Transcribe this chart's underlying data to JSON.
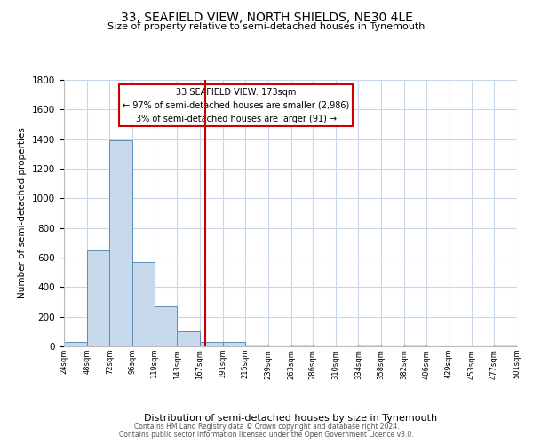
{
  "title": "33, SEAFIELD VIEW, NORTH SHIELDS, NE30 4LE",
  "subtitle": "Size of property relative to semi-detached houses in Tynemouth",
  "xlabel": "Distribution of semi-detached houses by size in Tynemouth",
  "ylabel": "Number of semi-detached properties",
  "footnote1": "Contains HM Land Registry data © Crown copyright and database right 2024.",
  "footnote2": "Contains public sector information licensed under the Open Government Licence v3.0.",
  "bar_edges": [
    24,
    48,
    72,
    96,
    119,
    143,
    167,
    191,
    215,
    239,
    263,
    286,
    310,
    334,
    358,
    382,
    406,
    429,
    453,
    477,
    501
  ],
  "bar_heights": [
    30,
    650,
    1390,
    570,
    270,
    105,
    30,
    30,
    15,
    0,
    15,
    0,
    0,
    15,
    0,
    15,
    0,
    0,
    0,
    15,
    0
  ],
  "property_size": 173,
  "annotation_title": "33 SEAFIELD VIEW: 173sqm",
  "annotation_line1": "← 97% of semi-detached houses are smaller (2,986)",
  "annotation_line2": "3% of semi-detached houses are larger (91) →",
  "bar_color": "#c9d9ec",
  "bar_edge_color": "#5b8db8",
  "red_line_color": "#cc0000",
  "annotation_box_edge": "#cc0000",
  "background_color": "#ffffff",
  "grid_color": "#c8d8e8",
  "ylim": [
    0,
    1800
  ],
  "yticks": [
    0,
    200,
    400,
    600,
    800,
    1000,
    1200,
    1400,
    1600,
    1800
  ]
}
